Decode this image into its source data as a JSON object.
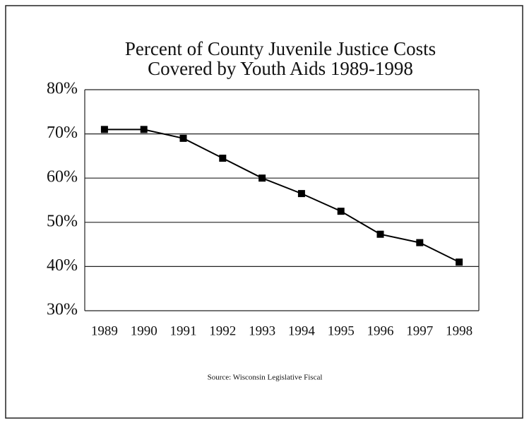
{
  "chart_data": {
    "type": "line",
    "title": [
      "Percent of County Juvenile Justice Costs",
      "Covered by Youth Aids    1989-1998"
    ],
    "categories": [
      "1989",
      "1990",
      "1991",
      "1992",
      "1993",
      "1994",
      "1995",
      "1996",
      "1997",
      "1998"
    ],
    "series": [
      {
        "color": "#000000",
        "values": [
          71,
          71,
          69,
          64.5,
          60,
          56.5,
          52.5,
          47.3,
          45.4,
          41
        ]
      }
    ],
    "ylim": [
      30,
      80
    ],
    "yticks": [
      {
        "value": 30,
        "label": "30%"
      },
      {
        "value": 40,
        "label": "40%"
      },
      {
        "value": 50,
        "label": "50%"
      },
      {
        "value": 60,
        "label": "60%"
      },
      {
        "value": 70,
        "label": "70%"
      },
      {
        "value": 80,
        "label": "80%"
      }
    ],
    "grid": true,
    "source": "Source: Wisconsin Legislative Fiscal"
  }
}
